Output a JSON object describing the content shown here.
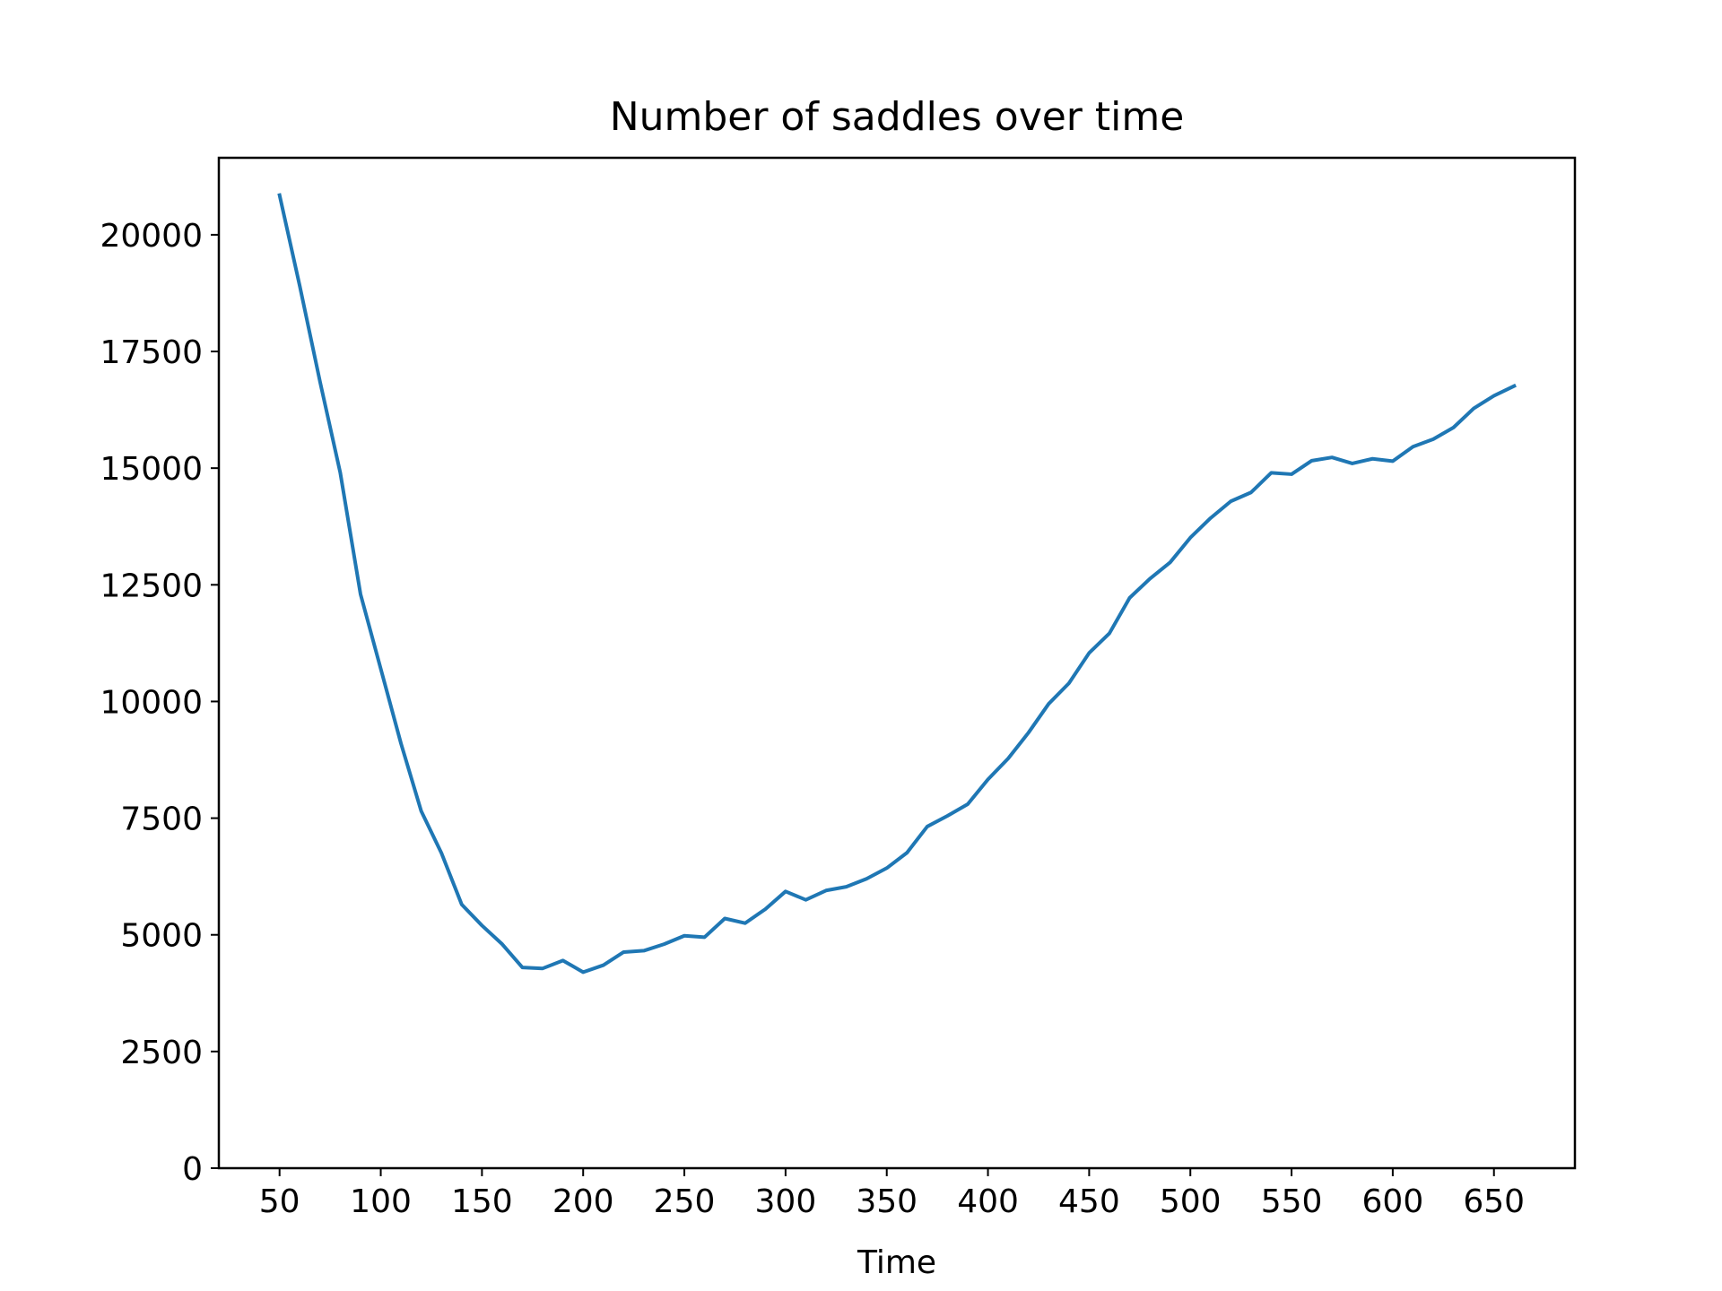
{
  "chart_data": {
    "type": "line",
    "title": "Number of saddles over time",
    "xlabel": "Time",
    "ylabel": "",
    "xlim": [
      20,
      690
    ],
    "ylim": [
      0,
      21650
    ],
    "xticks": [
      50,
      100,
      150,
      200,
      250,
      300,
      350,
      400,
      450,
      500,
      550,
      600,
      650
    ],
    "yticks": [
      0,
      2500,
      5000,
      7500,
      10000,
      12500,
      15000,
      17500,
      20000
    ],
    "grid": false,
    "colors": {
      "line": "#1f77b4",
      "axes": "#000000",
      "background": "#ffffff"
    },
    "series": [
      {
        "x": [
          50,
          60,
          70,
          80,
          90,
          100,
          110,
          120,
          130,
          140,
          150,
          160,
          170,
          180,
          190,
          200,
          210,
          220,
          230,
          240,
          250,
          260,
          270,
          280,
          290,
          300,
          310,
          320,
          330,
          340,
          350,
          360,
          370,
          380,
          390,
          400,
          410,
          420,
          430,
          440,
          450,
          460,
          470,
          480,
          490,
          500,
          510,
          520,
          530,
          540,
          550,
          560,
          570,
          580,
          590,
          600,
          610,
          620,
          630,
          640,
          650,
          660
        ],
        "y": [
          20850,
          18900,
          16850,
          14900,
          12300,
          10700,
          9100,
          7650,
          6750,
          5650,
          5200,
          4800,
          4300,
          4280,
          4450,
          4200,
          4350,
          4630,
          4660,
          4800,
          4980,
          4950,
          5350,
          5250,
          5550,
          5930,
          5750,
          5950,
          6030,
          6200,
          6430,
          6760,
          7320,
          7550,
          7800,
          8330,
          8780,
          9330,
          9950,
          10390,
          11040,
          11460,
          12220,
          12630,
          12980,
          13510,
          13930,
          14290,
          14480,
          14900,
          14870,
          15160,
          15230,
          15100,
          15200,
          15150,
          15460,
          15620,
          15870,
          16280,
          16550,
          16760
        ]
      }
    ]
  }
}
